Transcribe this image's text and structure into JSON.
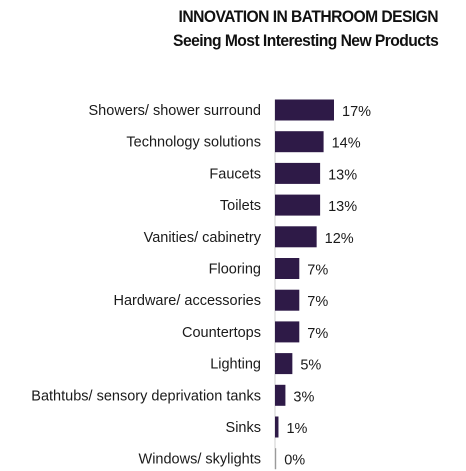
{
  "header": {
    "title": "INNOVATION IN BATHROOM DESIGN",
    "subtitle": "Seeing Most Interesting New Products"
  },
  "colors": {
    "bar": "#2e1a47"
  },
  "chart_data": {
    "type": "bar",
    "orientation": "horizontal",
    "title": "INNOVATION IN BATHROOM DESIGN",
    "subtitle": "Seeing Most Interesting New Products",
    "categories": [
      "Showers/ shower surround",
      "Technology solutions",
      "Faucets",
      "Toilets",
      "Vanities/ cabinetry",
      "Flooring",
      "Hardware/ accessories",
      "Countertops",
      "Lighting",
      "Bathtubs/ sensory deprivation tanks",
      "Sinks",
      "Windows/ skylights"
    ],
    "values": [
      17,
      14,
      13,
      13,
      12,
      7,
      7,
      7,
      5,
      3,
      1,
      0
    ],
    "value_labels": [
      "17%",
      "14%",
      "13%",
      "13%",
      "12%",
      "7%",
      "7%",
      "7%",
      "5%",
      "3%",
      "1%",
      "0%"
    ],
    "unit": "%",
    "xlim": [
      0,
      17
    ],
    "grid": false,
    "legend": "none",
    "xlabel": "",
    "ylabel": ""
  }
}
